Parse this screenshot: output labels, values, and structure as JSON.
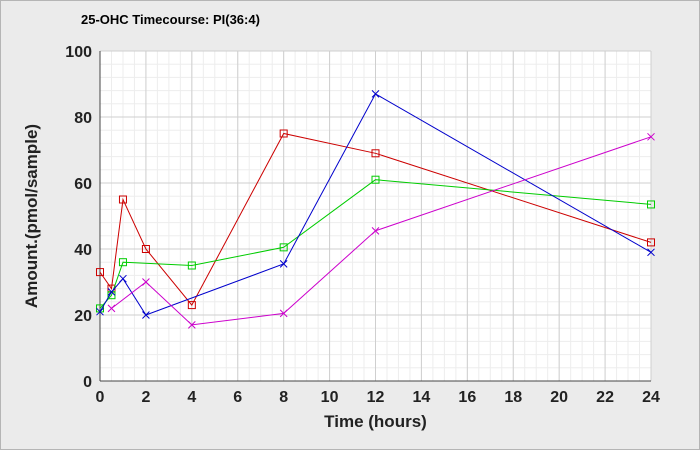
{
  "chart_data": {
    "type": "line",
    "title": "25-OHC Timecourse: PI(36:4)",
    "xlabel": "Time (hours)",
    "ylabel": "Amount.(pmol/sample)",
    "xlim": [
      0,
      24
    ],
    "ylim": [
      0,
      100
    ],
    "x_ticks": [
      0,
      2,
      4,
      6,
      8,
      10,
      12,
      14,
      16,
      18,
      20,
      22,
      24
    ],
    "y_ticks": [
      0,
      20,
      40,
      60,
      80,
      100
    ],
    "grid": true,
    "legend": "none",
    "series": [
      {
        "color": "#cc0000",
        "marker": "square",
        "x": [
          0,
          0.5,
          1,
          2,
          4,
          8,
          12,
          24
        ],
        "y": [
          33,
          28,
          55,
          40,
          23,
          75,
          69,
          42
        ]
      },
      {
        "color": "#00cc00",
        "marker": "square",
        "x": [
          0,
          0.5,
          1,
          4,
          8,
          12,
          24
        ],
        "y": [
          22,
          26,
          36,
          35,
          40.5,
          61,
          53.5
        ]
      },
      {
        "color": "#0000cc",
        "marker": "x",
        "x": [
          0,
          0.5,
          1,
          2,
          8,
          12,
          24
        ],
        "y": [
          21,
          27,
          31,
          20,
          35.5,
          87,
          39
        ]
      },
      {
        "color": "#cc00cc",
        "marker": "x",
        "x": [
          0.5,
          2,
          4,
          8,
          12,
          24
        ],
        "y": [
          22,
          30,
          17,
          20.5,
          45.5,
          74
        ]
      }
    ]
  }
}
